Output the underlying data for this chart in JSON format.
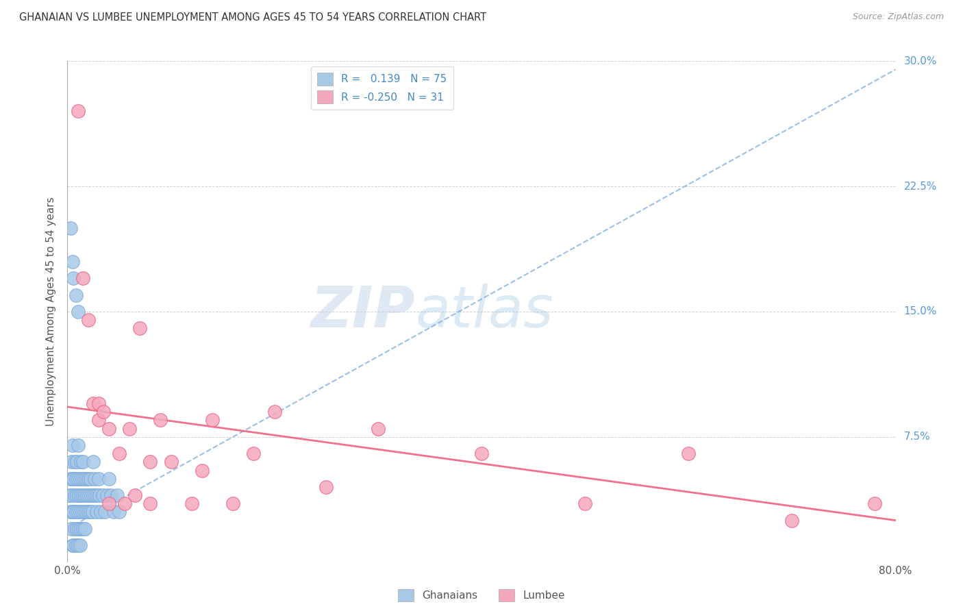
{
  "title": "GHANAIAN VS LUMBEE UNEMPLOYMENT AMONG AGES 45 TO 54 YEARS CORRELATION CHART",
  "source": "Source: ZipAtlas.com",
  "ylabel": "Unemployment Among Ages 45 to 54 years",
  "xlim": [
    0.0,
    0.8
  ],
  "ylim": [
    0.0,
    0.3
  ],
  "xtick_positions": [
    0.0,
    0.1,
    0.2,
    0.3,
    0.4,
    0.5,
    0.6,
    0.7,
    0.8
  ],
  "xticklabels": [
    "0.0%",
    "",
    "",
    "",
    "",
    "",
    "",
    "",
    "80.0%"
  ],
  "ytick_positions": [
    0.0,
    0.075,
    0.15,
    0.225,
    0.3
  ],
  "yticklabels_right": [
    "",
    "7.5%",
    "15.0%",
    "22.5%",
    "30.0%"
  ],
  "ghanaian_color": "#a8c8e8",
  "lumbee_color": "#f4a8bc",
  "trend_ghanaian_color": "#7aaadd",
  "trend_lumbee_color": "#f06080",
  "watermark_zip": "ZIP",
  "watermark_atlas": "atlas",
  "background_color": "#ffffff",
  "ghanaian_x": [
    0.002,
    0.003,
    0.003,
    0.004,
    0.004,
    0.004,
    0.005,
    0.005,
    0.005,
    0.005,
    0.006,
    0.006,
    0.006,
    0.007,
    0.007,
    0.007,
    0.008,
    0.008,
    0.008,
    0.009,
    0.009,
    0.009,
    0.01,
    0.01,
    0.01,
    0.01,
    0.011,
    0.011,
    0.012,
    0.012,
    0.012,
    0.013,
    0.013,
    0.013,
    0.014,
    0.014,
    0.015,
    0.015,
    0.015,
    0.016,
    0.016,
    0.017,
    0.017,
    0.018,
    0.018,
    0.019,
    0.02,
    0.02,
    0.021,
    0.022,
    0.022,
    0.023,
    0.024,
    0.025,
    0.025,
    0.026,
    0.027,
    0.028,
    0.029,
    0.03,
    0.031,
    0.032,
    0.034,
    0.036,
    0.038,
    0.04,
    0.042,
    0.045,
    0.048,
    0.05,
    0.003,
    0.005,
    0.006,
    0.008,
    0.01
  ],
  "ghanaian_y": [
    0.04,
    0.05,
    0.03,
    0.02,
    0.04,
    0.06,
    0.01,
    0.03,
    0.05,
    0.07,
    0.01,
    0.03,
    0.05,
    0.02,
    0.04,
    0.06,
    0.01,
    0.03,
    0.05,
    0.02,
    0.04,
    0.06,
    0.01,
    0.03,
    0.05,
    0.07,
    0.02,
    0.04,
    0.01,
    0.03,
    0.05,
    0.02,
    0.04,
    0.06,
    0.03,
    0.05,
    0.02,
    0.04,
    0.06,
    0.03,
    0.05,
    0.02,
    0.04,
    0.03,
    0.05,
    0.04,
    0.03,
    0.05,
    0.04,
    0.03,
    0.05,
    0.04,
    0.03,
    0.04,
    0.06,
    0.05,
    0.04,
    0.03,
    0.04,
    0.05,
    0.04,
    0.03,
    0.04,
    0.03,
    0.04,
    0.05,
    0.04,
    0.03,
    0.04,
    0.03,
    0.2,
    0.18,
    0.17,
    0.16,
    0.15
  ],
  "lumbee_x": [
    0.01,
    0.015,
    0.02,
    0.025,
    0.03,
    0.03,
    0.035,
    0.04,
    0.04,
    0.05,
    0.055,
    0.06,
    0.065,
    0.07,
    0.08,
    0.08,
    0.09,
    0.1,
    0.12,
    0.13,
    0.14,
    0.16,
    0.18,
    0.2,
    0.25,
    0.3,
    0.4,
    0.5,
    0.6,
    0.7,
    0.78
  ],
  "lumbee_y": [
    0.27,
    0.17,
    0.145,
    0.095,
    0.085,
    0.095,
    0.09,
    0.08,
    0.035,
    0.065,
    0.035,
    0.08,
    0.04,
    0.14,
    0.035,
    0.06,
    0.085,
    0.06,
    0.035,
    0.055,
    0.085,
    0.035,
    0.065,
    0.09,
    0.045,
    0.08,
    0.065,
    0.035,
    0.065,
    0.025,
    0.035
  ],
  "ghanaian_trend_x0": 0.0,
  "ghanaian_trend_y0": 0.02,
  "ghanaian_trend_x1": 0.8,
  "ghanaian_trend_y1": 0.295,
  "lumbee_trend_x0": 0.0,
  "lumbee_trend_y0": 0.093,
  "lumbee_trend_x1": 0.8,
  "lumbee_trend_y1": 0.025
}
